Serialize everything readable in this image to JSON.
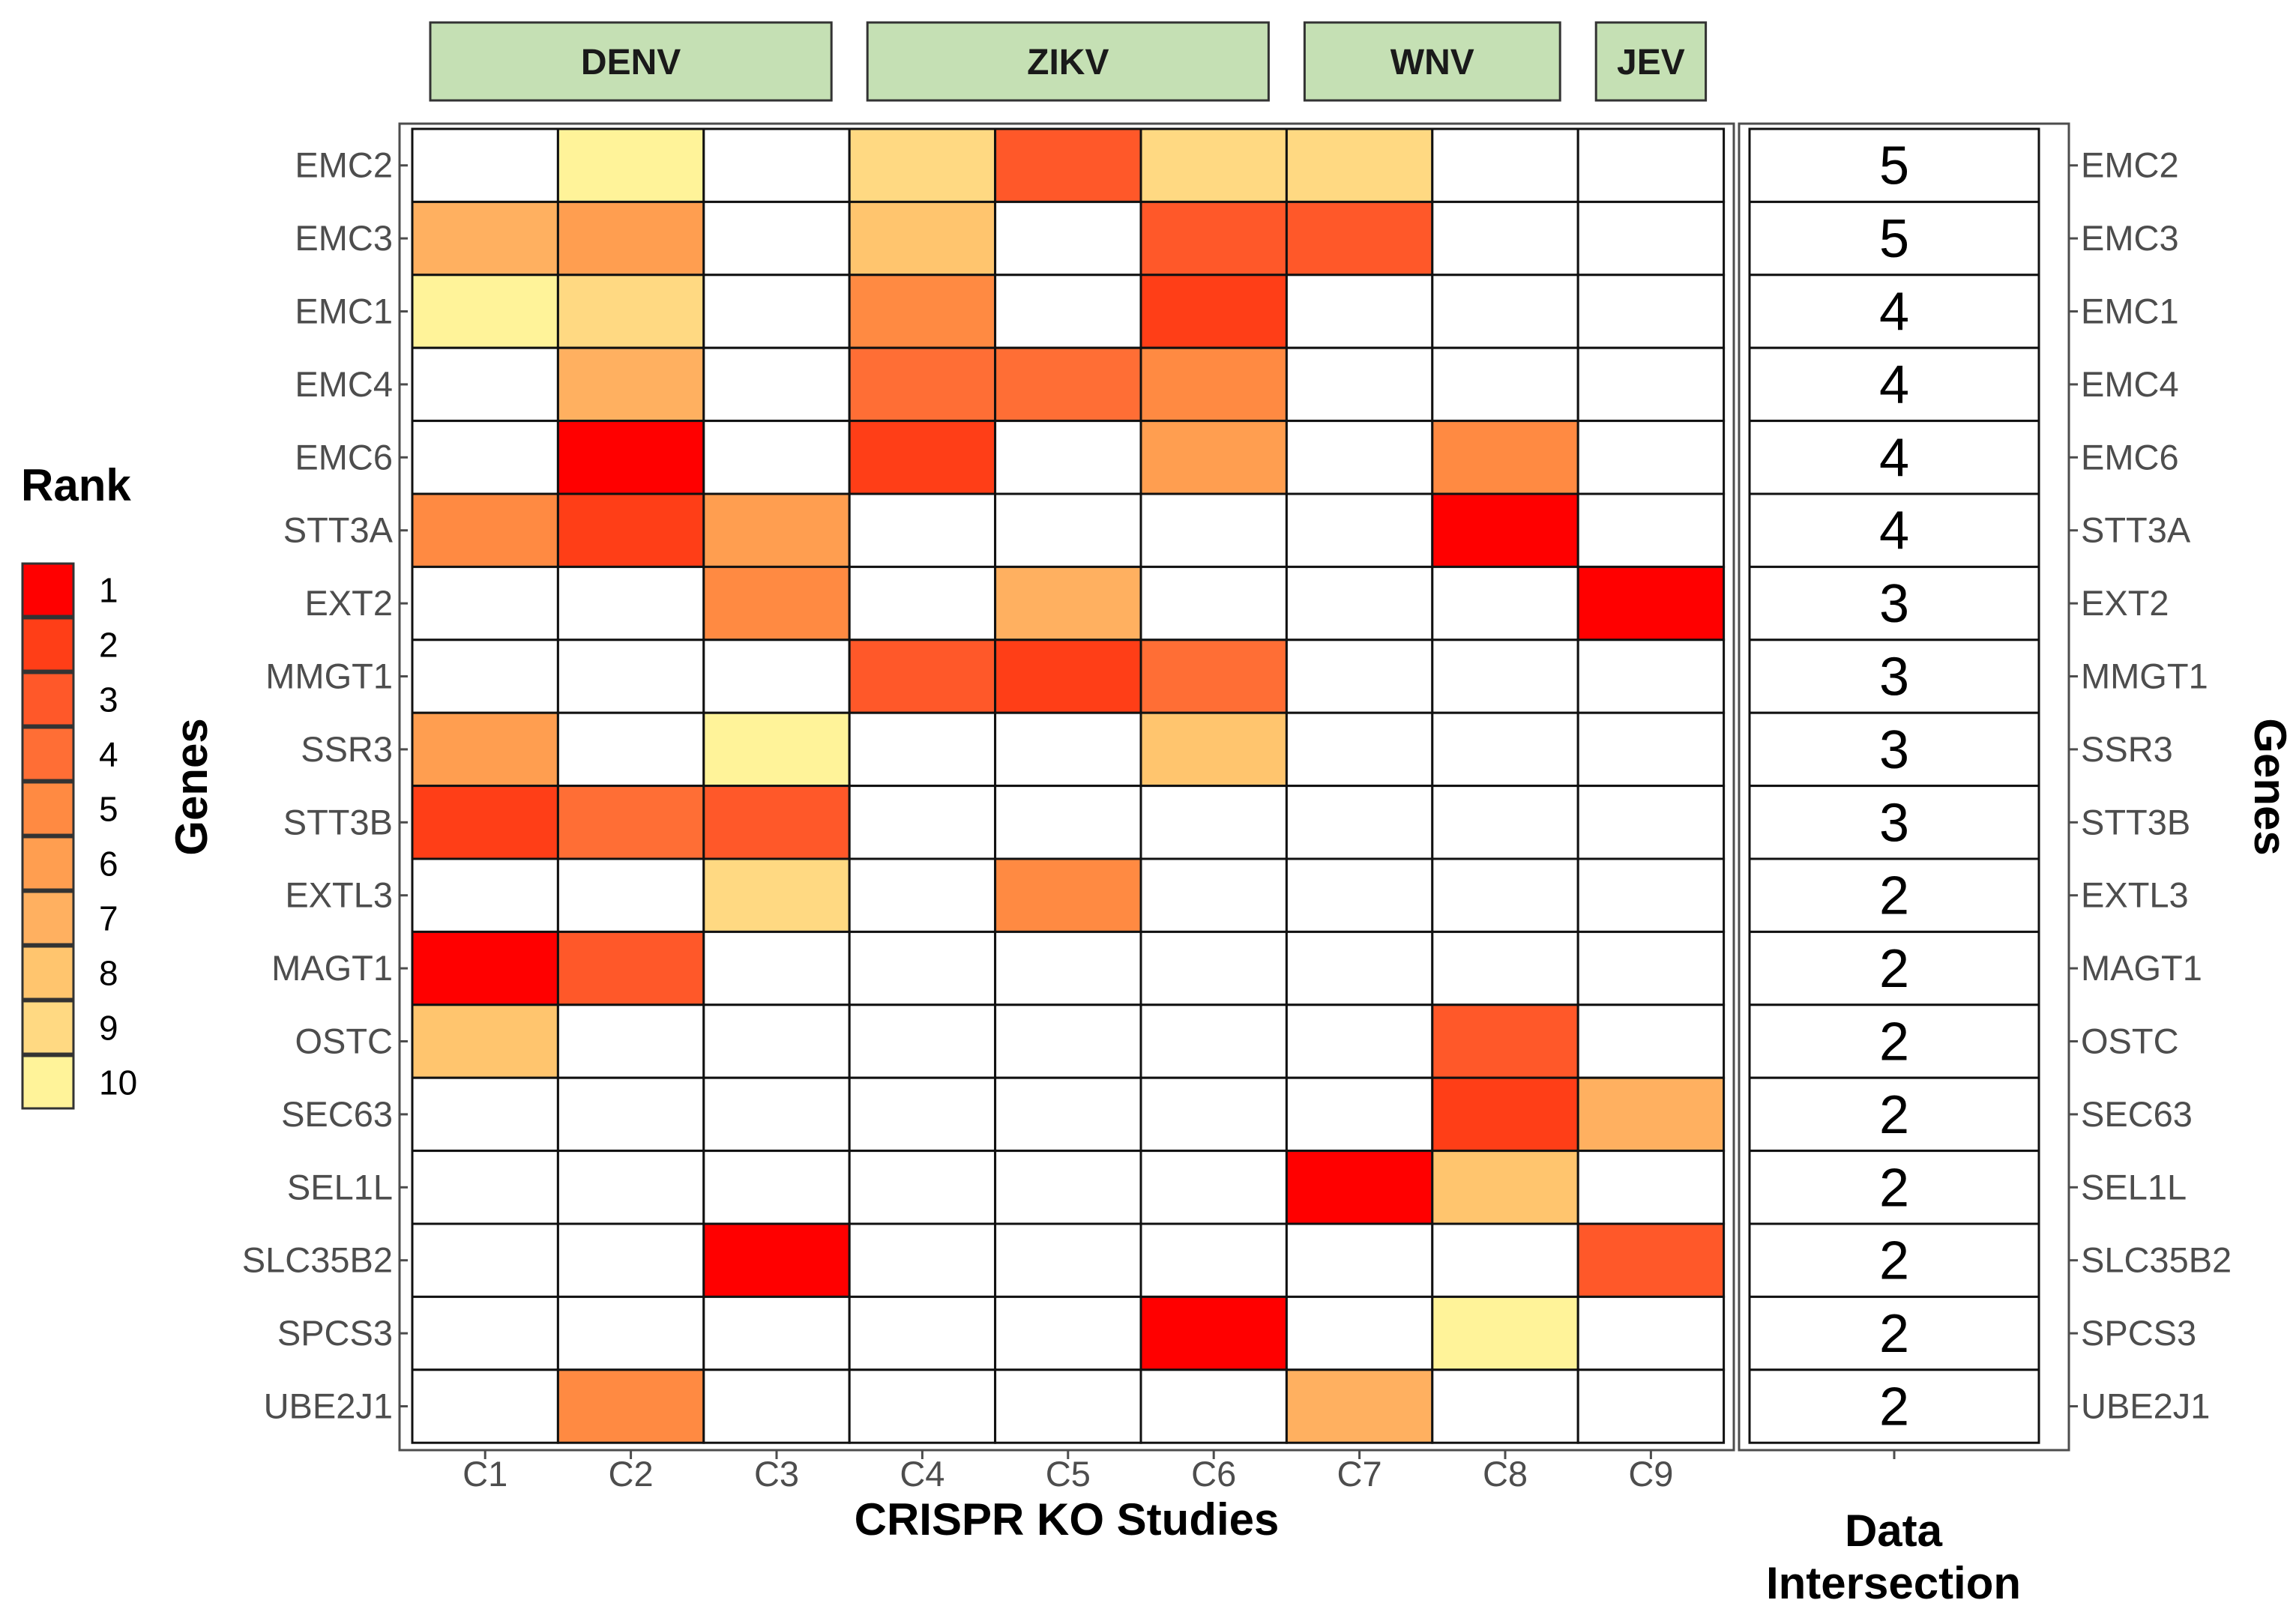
{
  "chart_data": {
    "type": "heatmap",
    "xlabel": "CRISPR KO Studies",
    "ylabel": "Genes",
    "ylabel_right": "Genes",
    "intersection_title_lines": [
      "Data",
      "Intersection"
    ],
    "legend_title": "Rank",
    "studies": [
      "C1",
      "C2",
      "C3",
      "C4",
      "C5",
      "C6",
      "C7",
      "C8",
      "C9"
    ],
    "virus_groups": [
      {
        "label": "DENV",
        "studies": [
          "C1",
          "C2",
          "C3"
        ]
      },
      {
        "label": "ZIKV",
        "studies": [
          "C4",
          "C5",
          "C6"
        ]
      },
      {
        "label": "WNV",
        "studies": [
          "C7",
          "C8"
        ]
      },
      {
        "label": "JEV",
        "studies": [
          "C9"
        ]
      }
    ],
    "genes": [
      "EMC2",
      "EMC3",
      "EMC1",
      "EMC4",
      "EMC6",
      "STT3A",
      "EXT2",
      "MMGT1",
      "SSR3",
      "STT3B",
      "EXTL3",
      "MAGT1",
      "OSTC",
      "SEC63",
      "SEL1L",
      "SLC35B2",
      "SPCS3",
      "UBE2J1"
    ],
    "ranks": [
      [
        null,
        10,
        null,
        9,
        3,
        9,
        9,
        null,
        null
      ],
      [
        7,
        6,
        null,
        8,
        null,
        3,
        3,
        null,
        null
      ],
      [
        10,
        9,
        null,
        5,
        null,
        2,
        null,
        null,
        null
      ],
      [
        null,
        7,
        null,
        4,
        4,
        5,
        null,
        null,
        null
      ],
      [
        null,
        1,
        null,
        2,
        null,
        6,
        null,
        5,
        null
      ],
      [
        5,
        2,
        6,
        null,
        null,
        null,
        null,
        1,
        null
      ],
      [
        null,
        null,
        5,
        null,
        7,
        null,
        null,
        null,
        1
      ],
      [
        null,
        null,
        null,
        3,
        2,
        4,
        null,
        null,
        null
      ],
      [
        6,
        null,
        10,
        null,
        null,
        8,
        null,
        null,
        null
      ],
      [
        2,
        4,
        3,
        null,
        null,
        null,
        null,
        null,
        null
      ],
      [
        null,
        null,
        9,
        null,
        5,
        null,
        null,
        null,
        null
      ],
      [
        1,
        3,
        null,
        null,
        null,
        null,
        null,
        null,
        null
      ],
      [
        8,
        null,
        null,
        null,
        null,
        null,
        null,
        3,
        null
      ],
      [
        null,
        null,
        null,
        null,
        null,
        null,
        null,
        2,
        7
      ],
      [
        null,
        null,
        null,
        null,
        null,
        null,
        1,
        8,
        null
      ],
      [
        null,
        null,
        1,
        null,
        null,
        null,
        null,
        null,
        3
      ],
      [
        null,
        null,
        null,
        null,
        null,
        1,
        null,
        10,
        null
      ],
      [
        null,
        5,
        null,
        null,
        null,
        null,
        7,
        null,
        null
      ]
    ],
    "intersection": [
      5,
      5,
      4,
      4,
      4,
      4,
      3,
      3,
      3,
      3,
      2,
      2,
      2,
      2,
      2,
      2,
      2,
      2
    ],
    "legend": {
      "ranks": [
        "1",
        "2",
        "3",
        "4",
        "5",
        "6",
        "7",
        "8",
        "9",
        "10"
      ],
      "colors": [
        "#ff0000",
        "#ff3e17",
        "#ff5829",
        "#ff6e35",
        "#ff8a42",
        "#ff9e50",
        "#ffb060",
        "#ffc56e",
        "#ffd982",
        "#fff399"
      ]
    },
    "empty_color": "#ffffff",
    "group_fill": "#c5e0b4"
  }
}
